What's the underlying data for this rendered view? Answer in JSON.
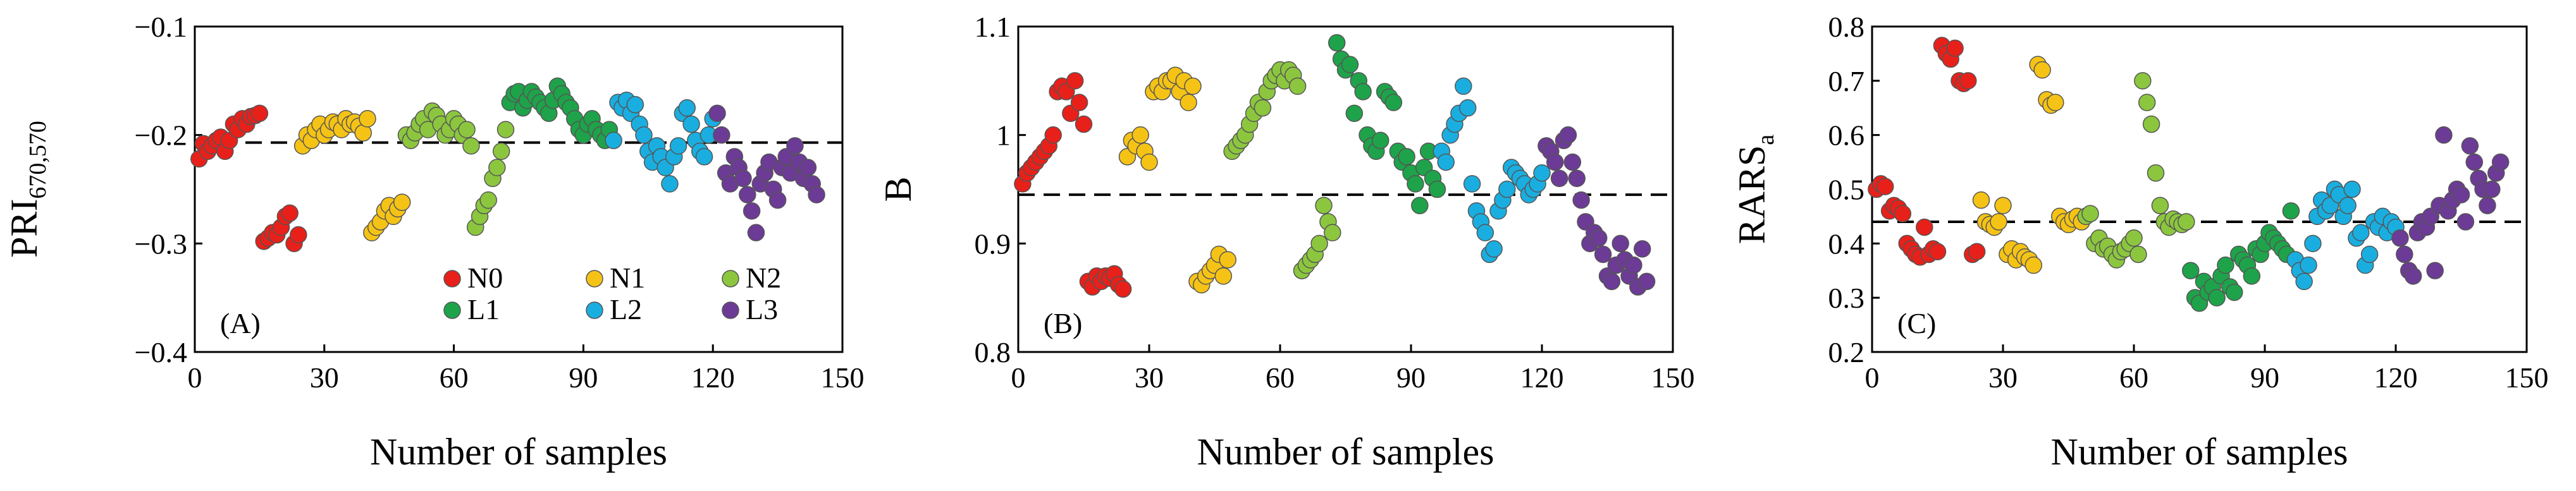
{
  "chart_data": [
    {
      "type": "scatter",
      "panel_label": "(A)",
      "ylabel": "PRI",
      "ylabel_subscript": "670,570",
      "xlabel": "Number of samples",
      "xlim": [
        0,
        150
      ],
      "ylim": [
        -0.4,
        -0.1
      ],
      "xticks": [
        0,
        30,
        60,
        90,
        120,
        150
      ],
      "yticks": [
        -0.4,
        -0.3,
        -0.2,
        -0.1
      ],
      "ytick_labels": [
        "−0.4",
        "−0.3",
        "−0.2",
        "−0.1"
      ],
      "reference_line": -0.207,
      "legend": [
        "N0",
        "N1",
        "N2",
        "L1",
        "L2",
        "L3"
      ],
      "series": [
        {
          "name": "N0",
          "color": "#e8201a",
          "x": [
            1,
            2,
            3,
            4,
            5,
            6,
            7,
            8,
            9,
            10,
            11,
            12,
            13,
            14,
            15,
            16,
            17,
            18,
            19,
            20,
            21,
            22,
            23,
            24
          ],
          "y": [
            -0.222,
            -0.208,
            -0.215,
            -0.21,
            -0.205,
            -0.202,
            -0.215,
            -0.205,
            -0.19,
            -0.195,
            -0.185,
            -0.19,
            -0.183,
            -0.182,
            -0.18,
            -0.298,
            -0.295,
            -0.29,
            -0.292,
            -0.285,
            -0.275,
            -0.272,
            -0.3,
            -0.292
          ]
        },
        {
          "name": "N1",
          "color": "#f5c316",
          "x": [
            25,
            26,
            27,
            28,
            29,
            30,
            31,
            32,
            33,
            34,
            35,
            36,
            37,
            38,
            39,
            40,
            41,
            42,
            43,
            44,
            45,
            46,
            47,
            48
          ],
          "y": [
            -0.21,
            -0.2,
            -0.205,
            -0.195,
            -0.19,
            -0.2,
            -0.195,
            -0.188,
            -0.19,
            -0.195,
            -0.185,
            -0.19,
            -0.188,
            -0.192,
            -0.198,
            -0.185,
            -0.29,
            -0.285,
            -0.28,
            -0.27,
            -0.265,
            -0.275,
            -0.268,
            -0.262
          ]
        },
        {
          "name": "N2",
          "color": "#8cc63f",
          "x": [
            49,
            50,
            51,
            52,
            53,
            54,
            55,
            56,
            57,
            58,
            59,
            60,
            61,
            62,
            63,
            64,
            65,
            66,
            67,
            68,
            69,
            70,
            71,
            72
          ],
          "y": [
            -0.2,
            -0.205,
            -0.198,
            -0.19,
            -0.185,
            -0.195,
            -0.178,
            -0.182,
            -0.19,
            -0.2,
            -0.195,
            -0.185,
            -0.19,
            -0.2,
            -0.195,
            -0.21,
            -0.285,
            -0.275,
            -0.265,
            -0.26,
            -0.24,
            -0.23,
            -0.215,
            -0.195
          ]
        },
        {
          "name": "L1",
          "color": "#1ea34a",
          "x": [
            73,
            74,
            75,
            76,
            77,
            78,
            79,
            80,
            81,
            82,
            83,
            84,
            85,
            86,
            87,
            88,
            89,
            90,
            91,
            92,
            93,
            94,
            95,
            96
          ],
          "y": [
            -0.17,
            -0.162,
            -0.16,
            -0.175,
            -0.168,
            -0.16,
            -0.165,
            -0.17,
            -0.175,
            -0.18,
            -0.168,
            -0.155,
            -0.162,
            -0.17,
            -0.175,
            -0.185,
            -0.195,
            -0.2,
            -0.19,
            -0.185,
            -0.195,
            -0.2,
            -0.205,
            -0.195
          ]
        },
        {
          "name": "L2",
          "color": "#1aaee0",
          "x": [
            97,
            98,
            99,
            100,
            101,
            102,
            103,
            104,
            105,
            106,
            107,
            108,
            109,
            110,
            111,
            112,
            113,
            114,
            115,
            116,
            117,
            118,
            119,
            120
          ],
          "y": [
            -0.205,
            -0.17,
            -0.175,
            -0.168,
            -0.18,
            -0.172,
            -0.19,
            -0.2,
            -0.215,
            -0.225,
            -0.21,
            -0.22,
            -0.23,
            -0.245,
            -0.22,
            -0.21,
            -0.18,
            -0.175,
            -0.19,
            -0.205,
            -0.215,
            -0.22,
            -0.2,
            -0.185
          ]
        },
        {
          "name": "L3",
          "color": "#6c3b96",
          "x": [
            121,
            122,
            123,
            124,
            125,
            126,
            127,
            128,
            129,
            130,
            131,
            132,
            133,
            134,
            135,
            136,
            137,
            138,
            139,
            140,
            141,
            142,
            143,
            144
          ],
          "y": [
            -0.18,
            -0.2,
            -0.235,
            -0.245,
            -0.22,
            -0.23,
            -0.24,
            -0.255,
            -0.27,
            -0.29,
            -0.245,
            -0.235,
            -0.225,
            -0.25,
            -0.26,
            -0.23,
            -0.22,
            -0.235,
            -0.21,
            -0.225,
            -0.24,
            -0.23,
            -0.245,
            -0.255
          ]
        }
      ]
    },
    {
      "type": "scatter",
      "panel_label": "(B)",
      "ylabel": "B",
      "ylabel_subscript": "",
      "xlabel": "Number of samples",
      "xlim": [
        0,
        150
      ],
      "ylim": [
        0.8,
        1.1
      ],
      "xticks": [
        0,
        30,
        60,
        90,
        120,
        150
      ],
      "yticks": [
        0.8,
        0.9,
        1.0,
        1.1
      ],
      "ytick_labels": [
        "0.8",
        "0.9",
        "1",
        "1.1"
      ],
      "reference_line": 0.945,
      "legend": [
        "N0",
        "N1",
        "N2",
        "L1",
        "L2",
        "L3"
      ],
      "series": [
        {
          "name": "N0",
          "color": "#e8201a",
          "x": [
            1,
            2,
            3,
            4,
            5,
            6,
            7,
            8,
            9,
            10,
            11,
            12,
            13,
            14,
            15,
            16,
            17,
            18,
            19,
            20,
            21,
            22,
            23,
            24
          ],
          "y": [
            0.955,
            0.965,
            0.97,
            0.975,
            0.98,
            0.985,
            0.99,
            1.0,
            1.04,
            1.045,
            1.04,
            1.02,
            1.05,
            1.03,
            1.01,
            0.865,
            0.86,
            0.87,
            0.865,
            0.87,
            0.868,
            0.872,
            0.862,
            0.858
          ]
        },
        {
          "name": "N1",
          "color": "#f5c316",
          "x": [
            25,
            26,
            27,
            28,
            29,
            30,
            31,
            32,
            33,
            34,
            35,
            36,
            37,
            38,
            39,
            40,
            41,
            42,
            43,
            44,
            45,
            46,
            47,
            48
          ],
          "y": [
            0.98,
            0.995,
            0.99,
            1.0,
            0.985,
            0.975,
            1.04,
            1.045,
            1.04,
            1.05,
            1.05,
            1.055,
            1.04,
            1.05,
            1.03,
            1.045,
            0.865,
            0.862,
            0.87,
            0.875,
            0.88,
            0.89,
            0.87,
            0.885
          ]
        },
        {
          "name": "N2",
          "color": "#8cc63f",
          "x": [
            49,
            50,
            51,
            52,
            53,
            54,
            55,
            56,
            57,
            58,
            59,
            60,
            61,
            62,
            63,
            64,
            65,
            66,
            67,
            68,
            69,
            70,
            71,
            72
          ],
          "y": [
            0.985,
            0.99,
            0.995,
            1.0,
            1.01,
            1.02,
            1.03,
            1.025,
            1.04,
            1.05,
            1.055,
            1.06,
            1.05,
            1.06,
            1.055,
            1.045,
            0.875,
            0.88,
            0.885,
            0.89,
            0.9,
            0.935,
            0.92,
            0.91
          ]
        },
        {
          "name": "L1",
          "color": "#1ea34a",
          "x": [
            73,
            74,
            75,
            76,
            77,
            78,
            79,
            80,
            81,
            82,
            83,
            84,
            85,
            86,
            87,
            88,
            89,
            90,
            91,
            92,
            93,
            94,
            95,
            96
          ],
          "y": [
            1.085,
            1.07,
            1.06,
            1.065,
            1.02,
            1.05,
            1.04,
            1.0,
            0.99,
            0.985,
            0.995,
            1.04,
            1.035,
            1.03,
            0.985,
            0.975,
            0.98,
            0.965,
            0.955,
            0.935,
            0.97,
            0.985,
            0.96,
            0.95
          ]
        },
        {
          "name": "L2",
          "color": "#1aaee0",
          "x": [
            97,
            98,
            99,
            100,
            101,
            102,
            103,
            104,
            105,
            106,
            107,
            108,
            109,
            110,
            111,
            112,
            113,
            114,
            115,
            116,
            117,
            118,
            119,
            120
          ],
          "y": [
            0.985,
            0.975,
            1.0,
            1.01,
            1.02,
            1.045,
            1.025,
            0.955,
            0.93,
            0.92,
            0.91,
            0.89,
            0.895,
            0.93,
            0.94,
            0.95,
            0.97,
            0.965,
            0.96,
            0.955,
            0.945,
            0.95,
            0.955,
            0.965
          ]
        },
        {
          "name": "L3",
          "color": "#6c3b96",
          "x": [
            121,
            122,
            123,
            124,
            125,
            126,
            127,
            128,
            129,
            130,
            131,
            132,
            133,
            134,
            135,
            136,
            137,
            138,
            139,
            140,
            141,
            142,
            143,
            144
          ],
          "y": [
            0.99,
            0.985,
            0.975,
            0.96,
            0.995,
            1.0,
            0.975,
            0.96,
            0.94,
            0.92,
            0.9,
            0.91,
            0.905,
            0.89,
            0.87,
            0.865,
            0.88,
            0.9,
            0.885,
            0.87,
            0.88,
            0.86,
            0.895,
            0.865
          ]
        }
      ]
    },
    {
      "type": "scatter",
      "panel_label": "(C)",
      "ylabel": "RARS",
      "ylabel_subscript": "a",
      "xlabel": "Number of samples",
      "xlim": [
        0,
        150
      ],
      "ylim": [
        0.2,
        0.8
      ],
      "xticks": [
        0,
        30,
        60,
        90,
        120,
        150
      ],
      "yticks": [
        0.2,
        0.3,
        0.4,
        0.5,
        0.6,
        0.7,
        0.8
      ],
      "ytick_labels": [
        "0.2",
        "0.3",
        "0.4",
        "0.5",
        "0.6",
        "0.7",
        "0.8"
      ],
      "reference_line": 0.44,
      "legend": [
        "N0",
        "N1",
        "N2",
        "L1",
        "L2",
        "L3"
      ],
      "series": [
        {
          "name": "N0",
          "color": "#e8201a",
          "x": [
            1,
            2,
            3,
            4,
            5,
            6,
            7,
            8,
            9,
            10,
            11,
            12,
            13,
            14,
            15,
            16,
            17,
            18,
            19,
            20,
            21,
            22,
            23,
            24
          ],
          "y": [
            0.5,
            0.51,
            0.505,
            0.46,
            0.47,
            0.465,
            0.455,
            0.4,
            0.39,
            0.38,
            0.375,
            0.43,
            0.38,
            0.39,
            0.385,
            0.765,
            0.75,
            0.74,
            0.76,
            0.7,
            0.695,
            0.7,
            0.38,
            0.385
          ]
        },
        {
          "name": "N1",
          "color": "#f5c316",
          "x": [
            25,
            26,
            27,
            28,
            29,
            30,
            31,
            32,
            33,
            34,
            35,
            36,
            37,
            38,
            39,
            40,
            41,
            42,
            43,
            44,
            45,
            46,
            47,
            48
          ],
          "y": [
            0.48,
            0.44,
            0.435,
            0.43,
            0.44,
            0.47,
            0.38,
            0.39,
            0.37,
            0.385,
            0.375,
            0.37,
            0.36,
            0.73,
            0.72,
            0.665,
            0.655,
            0.66,
            0.45,
            0.44,
            0.435,
            0.445,
            0.45,
            0.44
          ]
        },
        {
          "name": "N2",
          "color": "#8cc63f",
          "x": [
            49,
            50,
            51,
            52,
            53,
            54,
            55,
            56,
            57,
            58,
            59,
            60,
            61,
            62,
            63,
            64,
            65,
            66,
            67,
            68,
            69,
            70,
            71,
            72
          ],
          "y": [
            0.45,
            0.455,
            0.4,
            0.41,
            0.39,
            0.395,
            0.38,
            0.37,
            0.385,
            0.39,
            0.4,
            0.41,
            0.38,
            0.7,
            0.66,
            0.62,
            0.53,
            0.47,
            0.44,
            0.43,
            0.445,
            0.44,
            0.435,
            0.44
          ]
        },
        {
          "name": "L1",
          "color": "#1ea34a",
          "x": [
            73,
            74,
            75,
            76,
            77,
            78,
            79,
            80,
            81,
            82,
            83,
            84,
            85,
            86,
            87,
            88,
            89,
            90,
            91,
            92,
            93,
            94,
            95,
            96
          ],
          "y": [
            0.35,
            0.3,
            0.29,
            0.33,
            0.31,
            0.32,
            0.3,
            0.34,
            0.36,
            0.32,
            0.31,
            0.38,
            0.37,
            0.36,
            0.34,
            0.39,
            0.38,
            0.4,
            0.42,
            0.41,
            0.4,
            0.39,
            0.38,
            0.46
          ]
        },
        {
          "name": "L2",
          "color": "#1aaee0",
          "x": [
            97,
            98,
            99,
            100,
            101,
            102,
            103,
            104,
            105,
            106,
            107,
            108,
            109,
            110,
            111,
            112,
            113,
            114,
            115,
            116,
            117,
            118,
            119,
            120
          ],
          "y": [
            0.37,
            0.35,
            0.33,
            0.36,
            0.4,
            0.45,
            0.48,
            0.46,
            0.47,
            0.5,
            0.49,
            0.45,
            0.47,
            0.5,
            0.41,
            0.42,
            0.36,
            0.38,
            0.44,
            0.43,
            0.45,
            0.42,
            0.44,
            0.43
          ]
        },
        {
          "name": "L3",
          "color": "#6c3b96",
          "x": [
            121,
            122,
            123,
            124,
            125,
            126,
            127,
            128,
            129,
            130,
            131,
            132,
            133,
            134,
            135,
            136,
            137,
            138,
            139,
            140,
            141,
            142,
            143,
            144
          ],
          "y": [
            0.41,
            0.38,
            0.35,
            0.34,
            0.42,
            0.44,
            0.43,
            0.45,
            0.35,
            0.47,
            0.6,
            0.46,
            0.48,
            0.5,
            0.49,
            0.44,
            0.58,
            0.55,
            0.52,
            0.5,
            0.47,
            0.5,
            0.53,
            0.55
          ]
        }
      ]
    }
  ]
}
